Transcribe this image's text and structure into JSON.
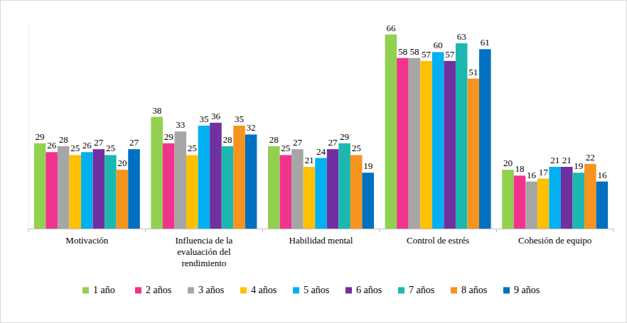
{
  "chart_data": {
    "type": "bar",
    "categories": [
      "Motivación",
      "Influencia de la evaluación del rendimiento",
      "Habilidad mental",
      "Control de estrés",
      "Cohesión de equipo"
    ],
    "series": [
      {
        "name": "1 año",
        "color": "#92d050",
        "values": [
          29,
          38,
          28,
          66,
          20
        ]
      },
      {
        "name": "2 años",
        "color": "#f0338d",
        "values": [
          26,
          29,
          25,
          58,
          18
        ]
      },
      {
        "name": "3 años",
        "color": "#a6a6a6",
        "values": [
          28,
          33,
          27,
          58,
          16
        ]
      },
      {
        "name": "4 años",
        "color": "#ffc000",
        "values": [
          25,
          25,
          21,
          57,
          17
        ]
      },
      {
        "name": "5 años",
        "color": "#00b0f0",
        "values": [
          26,
          35,
          24,
          60,
          21
        ]
      },
      {
        "name": "6 años",
        "color": "#7030a0",
        "values": [
          27,
          36,
          27,
          57,
          21
        ]
      },
      {
        "name": "7 años",
        "color": "#1cb8b0",
        "values": [
          25,
          28,
          29,
          63,
          19
        ]
      },
      {
        "name": "8 años",
        "color": "#f7941d",
        "values": [
          20,
          35,
          25,
          51,
          22
        ]
      },
      {
        "name": "9 años",
        "color": "#0070c0",
        "values": [
          27,
          32,
          19,
          61,
          16
        ]
      }
    ],
    "ylim": [
      0,
      70
    ],
    "grid": false,
    "legend": "bottom",
    "data_labels": true,
    "tick_labels": "x"
  }
}
